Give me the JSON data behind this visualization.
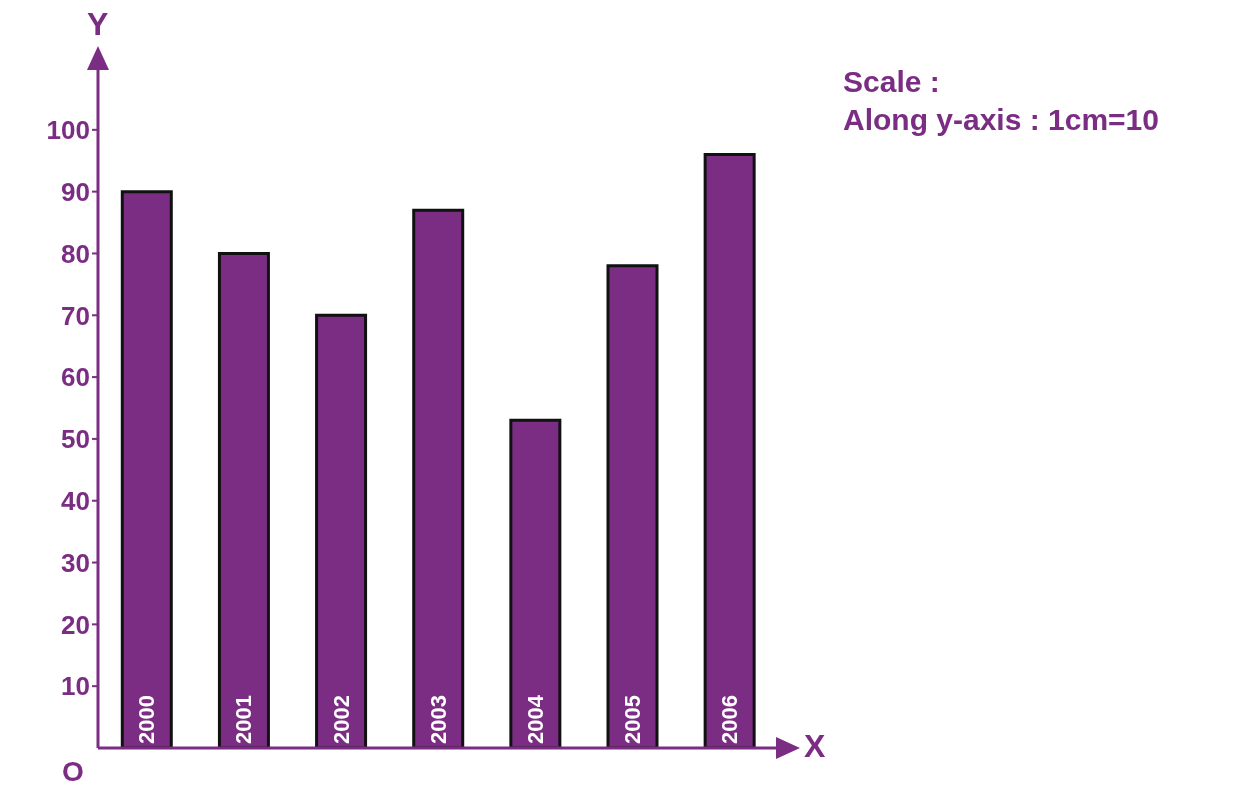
{
  "chart_data": {
    "type": "bar",
    "xlabel": "X",
    "ylabel": "Y",
    "categories": [
      "2000",
      "2001",
      "2002",
      "2003",
      "2004",
      "2005",
      "2006"
    ],
    "values": [
      90,
      80,
      70,
      87,
      53,
      78,
      96
    ],
    "color": "#7b2d84",
    "ylim": [
      0,
      110
    ],
    "yticks": [
      10,
      20,
      30,
      40,
      50,
      60,
      70,
      80,
      90,
      100
    ],
    "annotations": [
      "O",
      "Scale :",
      "Along y-axis : 1cm=10"
    ]
  }
}
